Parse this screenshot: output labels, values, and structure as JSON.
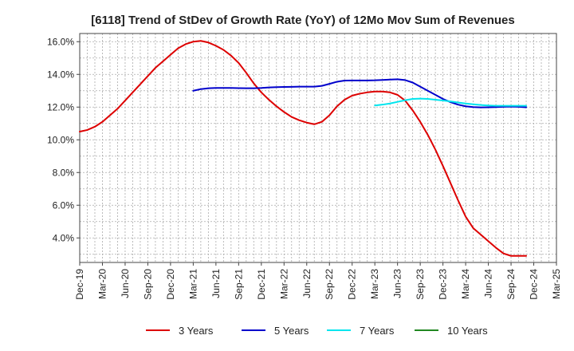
{
  "chart_data": {
    "type": "line",
    "title": "[6118]  Trend of StDev of Growth Rate (YoY) of 12Mo Mov Sum of Revenues",
    "xlabel": "",
    "ylabel": "",
    "ylim": [
      2.5,
      16.5
    ],
    "yticks": [
      4,
      6,
      8,
      10,
      12,
      14,
      16
    ],
    "ytick_labels": [
      "4.0%",
      "6.0%",
      "8.0%",
      "10.0%",
      "12.0%",
      "14.0%",
      "16.0%"
    ],
    "xticks": [
      "Dec-19",
      "Mar-20",
      "Jun-20",
      "Sep-20",
      "Dec-20",
      "Mar-21",
      "Jun-21",
      "Sep-21",
      "Dec-21",
      "Mar-22",
      "Jun-22",
      "Sep-22",
      "Dec-22",
      "Mar-23",
      "Jun-23",
      "Sep-23",
      "Dec-23",
      "Mar-24",
      "Jun-24",
      "Sep-24",
      "Dec-24",
      "Mar-25"
    ],
    "grid": true,
    "legend_position": "bottom",
    "series": [
      {
        "name": "3 Years",
        "color": "#dd0000",
        "start_month_index": 0,
        "values": [
          10.5,
          10.6,
          10.8,
          11.1,
          11.5,
          11.9,
          12.4,
          12.9,
          13.4,
          13.9,
          14.4,
          14.8,
          15.2,
          15.6,
          15.85,
          16.0,
          16.05,
          15.95,
          15.75,
          15.5,
          15.15,
          14.7,
          14.1,
          13.45,
          12.9,
          12.45,
          12.05,
          11.7,
          11.4,
          11.2,
          11.05,
          10.95,
          11.1,
          11.5,
          12.05,
          12.45,
          12.7,
          12.82,
          12.9,
          12.95,
          12.95,
          12.9,
          12.75,
          12.4,
          11.8,
          11.1,
          10.3,
          9.4,
          8.4,
          7.35,
          6.3,
          5.3,
          4.6,
          4.2,
          3.8,
          3.4,
          3.05,
          2.9,
          2.9,
          2.9
        ]
      },
      {
        "name": "5 Years",
        "color": "#0000cc",
        "start_month_index": 15,
        "values": [
          13.0,
          13.1,
          13.15,
          13.17,
          13.17,
          13.17,
          13.16,
          13.15,
          13.15,
          13.17,
          13.2,
          13.22,
          13.23,
          13.24,
          13.25,
          13.25,
          13.25,
          13.3,
          13.42,
          13.55,
          13.62,
          13.63,
          13.63,
          13.63,
          13.64,
          13.66,
          13.68,
          13.7,
          13.65,
          13.5,
          13.25,
          13.0,
          12.75,
          12.5,
          12.3,
          12.15,
          12.05,
          12.0,
          11.98,
          11.99,
          12.0,
          12.02,
          12.03,
          12.02,
          11.99
        ]
      },
      {
        "name": "7 Years",
        "color": "#00e5ee",
        "start_month_index": 39,
        "values": [
          12.1,
          12.15,
          12.22,
          12.32,
          12.42,
          12.5,
          12.52,
          12.5,
          12.45,
          12.4,
          12.35,
          12.28,
          12.22,
          12.17,
          12.13,
          12.1,
          12.08,
          12.08,
          12.08,
          12.08,
          12.08
        ]
      },
      {
        "name": "10 Years",
        "color": "#228822",
        "start_month_index": 0,
        "values": []
      }
    ]
  }
}
